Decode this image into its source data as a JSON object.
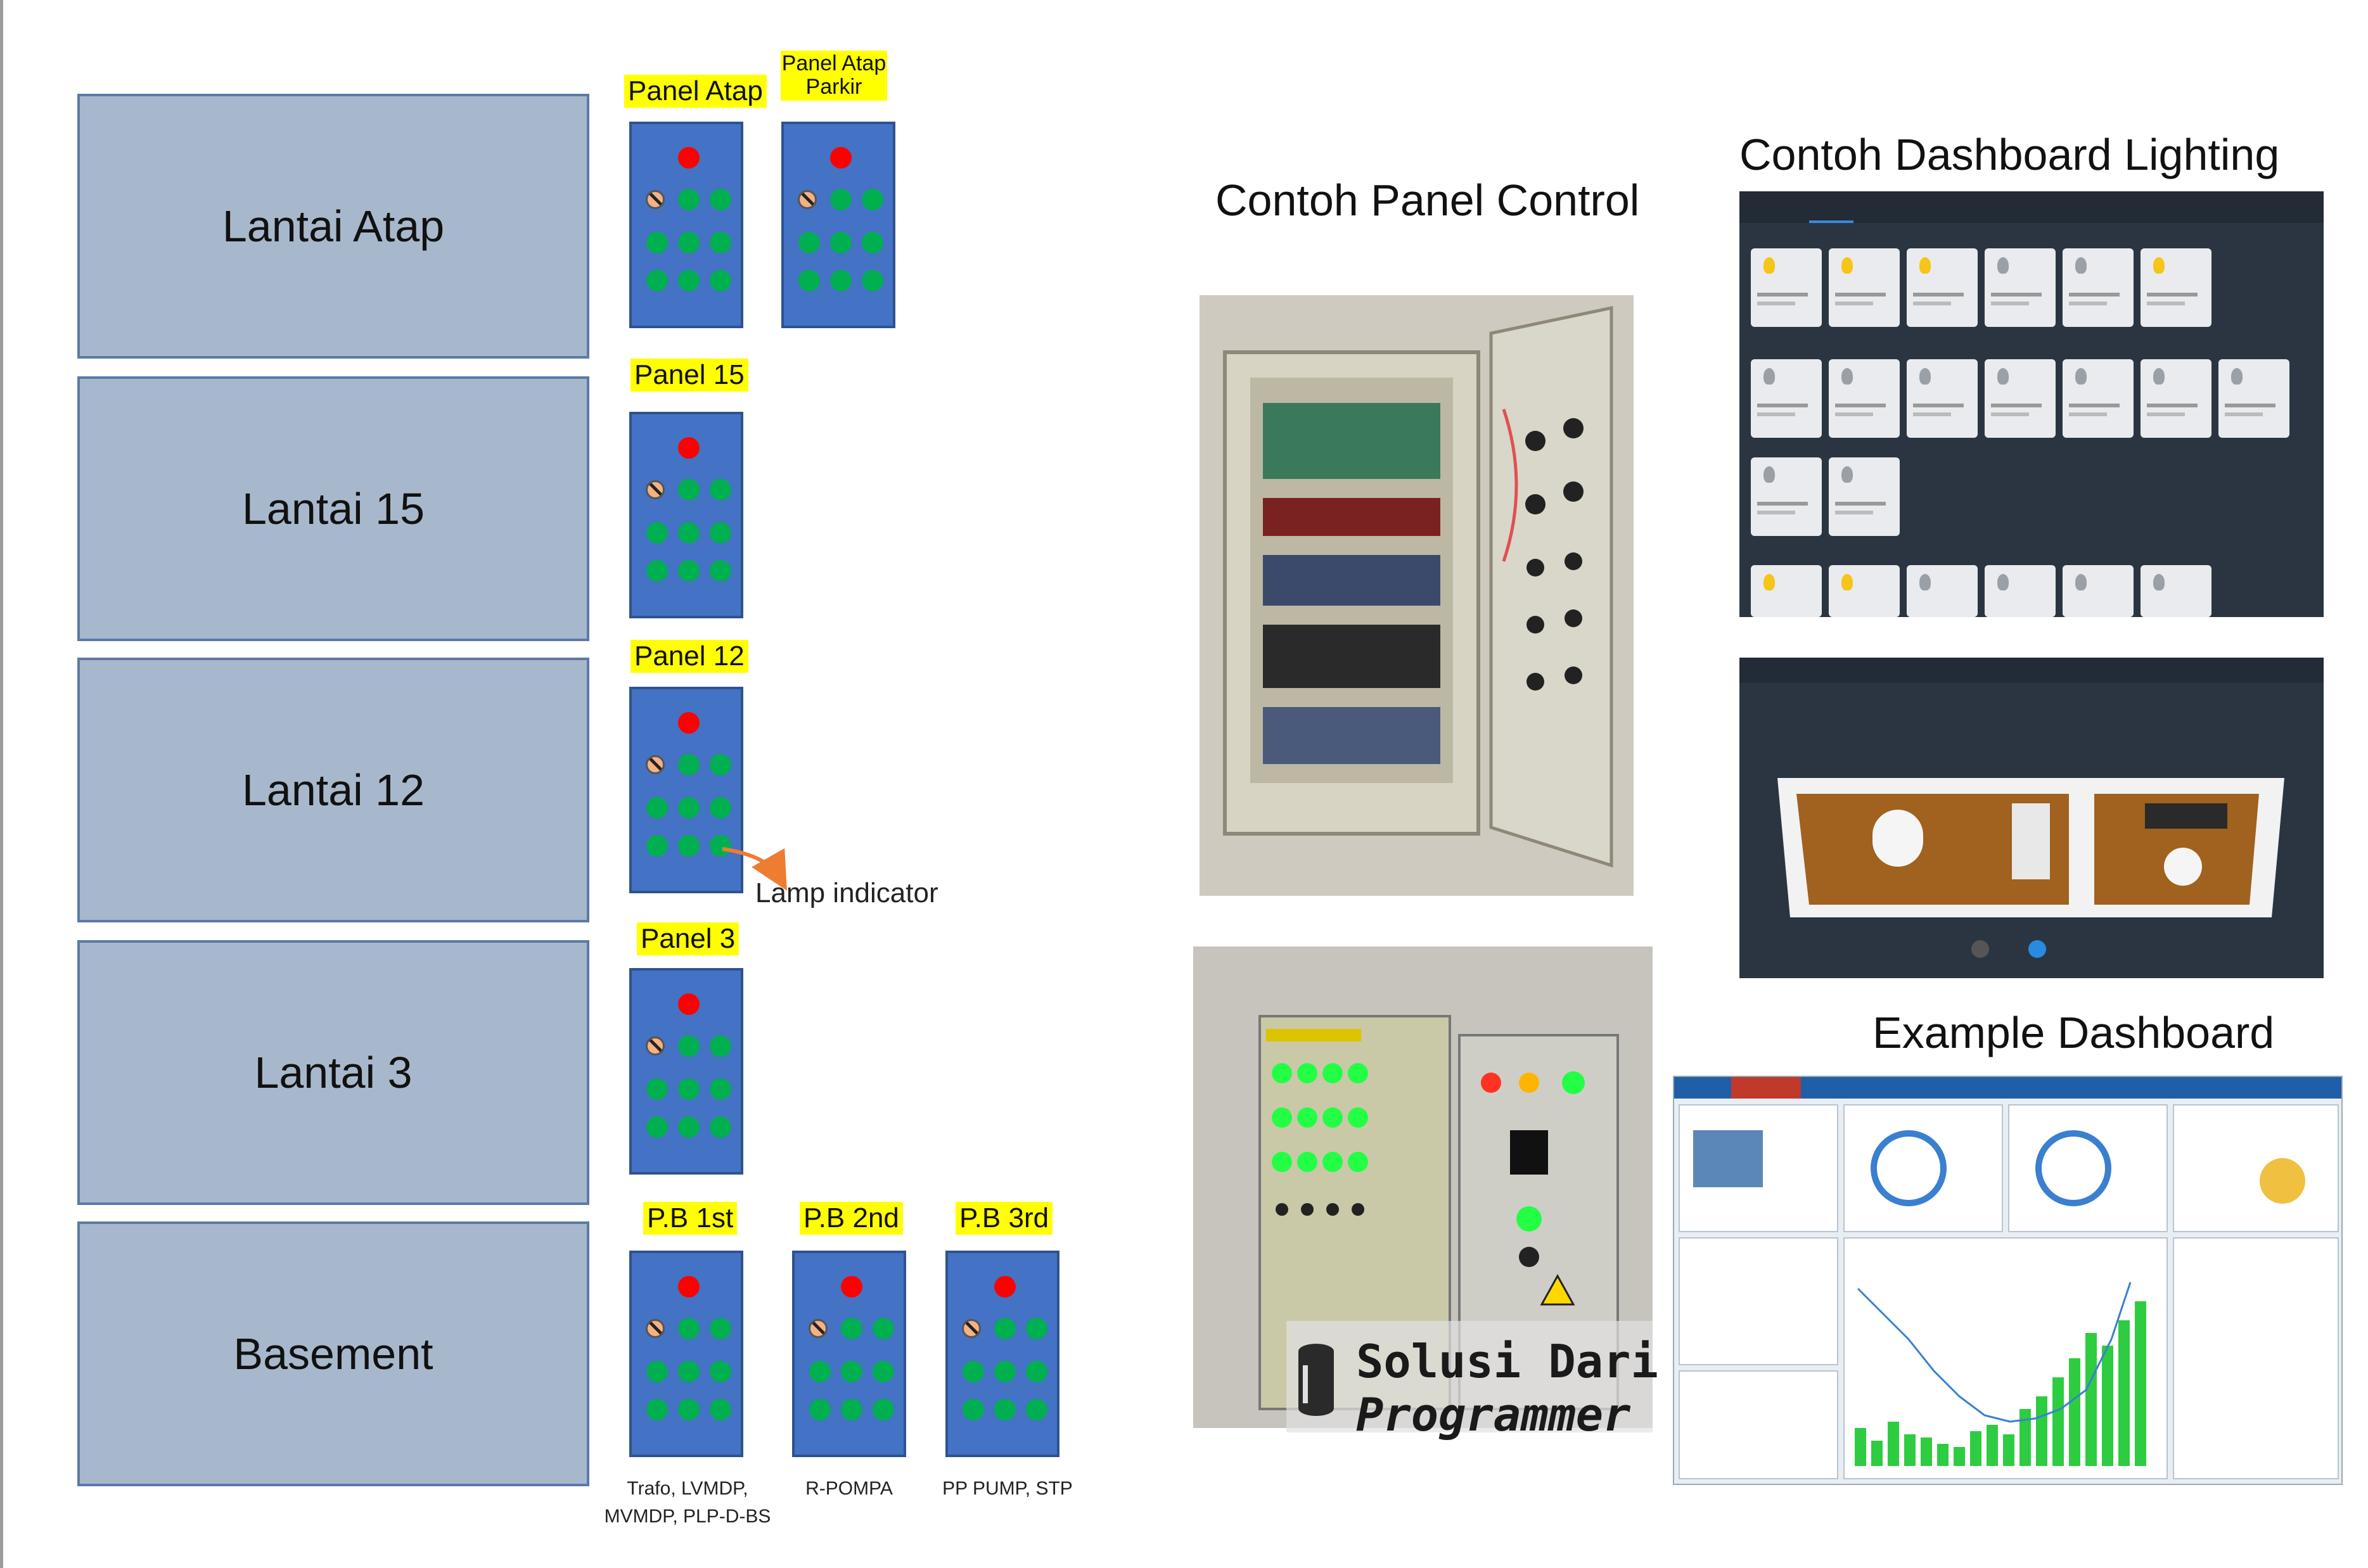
{
  "floors": [
    "Lantai Atap",
    "Lantai 15",
    "Lantai 12",
    "Lantai 3",
    "Basement"
  ],
  "panels": {
    "atap": "Panel Atap",
    "atap_parkir_line1": "Panel Atap",
    "atap_parkir_line2": "Parkir",
    "p15": "Panel 15",
    "p12": "Panel 12",
    "p3": "Panel 3",
    "pb1": "P.B 1st",
    "pb2": "P.B 2nd",
    "pb3": "P.B 3rd"
  },
  "lamp_indicator": "Lamp indicator",
  "captions": {
    "pb1_line1": "Trafo, LVMDP,",
    "pb1_line2": "MVMDP, PLP-D-BS",
    "pb2": "R-POMPA",
    "pb3": "PP PUMP, STP"
  },
  "headings": {
    "panel_control": "Contoh Panel Control",
    "dashboard_lighting": "Contoh Dashboard Lighting",
    "example_dashboard": "Example Dashboard"
  },
  "watermark": {
    "line1": "Solusi Dari",
    "line2": "Programmer"
  },
  "colors": {
    "floor_fill": "#a8b8cc",
    "panel_fill": "#4472c4",
    "label_highlight": "#ffff00",
    "indicator_red": "#ff0000",
    "indicator_green": "#00b050",
    "arrow": "#ed7d31"
  }
}
